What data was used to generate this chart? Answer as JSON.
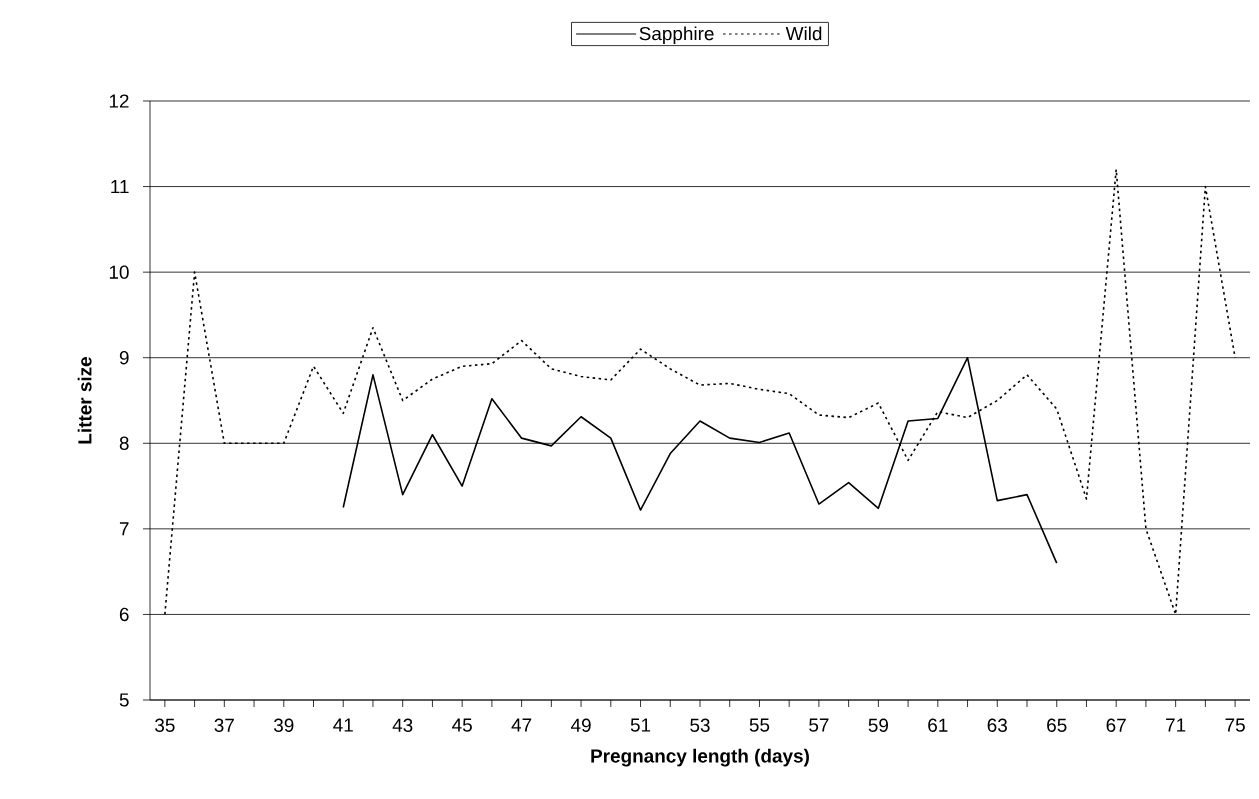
{
  "chart_data": {
    "type": "line",
    "xlabel": "Pregnancy length (days)",
    "ylabel": "Litter size",
    "categories": [
      "35",
      null,
      "37",
      null,
      "39",
      null,
      "41",
      null,
      "43",
      null,
      "45",
      null,
      "47",
      null,
      "49",
      null,
      "51",
      null,
      "53",
      null,
      "55",
      null,
      "57",
      null,
      "59",
      null,
      "61",
      null,
      "63",
      null,
      "65",
      null,
      "67",
      null,
      "71",
      null,
      "75"
    ],
    "series": [
      {
        "name": "Sapphire",
        "color": "#000000",
        "line_style": "solid",
        "values": [
          null,
          null,
          null,
          null,
          null,
          null,
          7.25,
          8.8,
          7.4,
          8.1,
          7.5,
          8.52,
          8.06,
          7.97,
          8.31,
          8.06,
          7.22,
          7.88,
          8.26,
          8.06,
          8.01,
          8.12,
          7.29,
          7.54,
          7.24,
          8.26,
          8.29,
          9.0,
          7.33,
          7.4,
          6.6,
          null,
          null,
          null,
          null,
          null,
          null
        ]
      },
      {
        "name": "Wild",
        "color": "#000000",
        "line_style": "dotted",
        "values": [
          6.0,
          10.0,
          8.0,
          8.0,
          8.0,
          8.9,
          8.35,
          9.35,
          8.5,
          8.75,
          8.9,
          8.93,
          9.2,
          8.87,
          8.78,
          8.74,
          9.1,
          8.87,
          8.68,
          8.7,
          8.63,
          8.58,
          8.33,
          8.3,
          8.47,
          7.8,
          8.37,
          8.3,
          8.5,
          8.8,
          8.4,
          7.35,
          11.2,
          7.0,
          6.0,
          11.0,
          9.0
        ]
      }
    ],
    "ylim": [
      5,
      12
    ],
    "yticks": [
      5,
      6,
      7,
      8,
      9,
      10,
      11,
      12
    ],
    "grid": "y",
    "legend": "top"
  }
}
